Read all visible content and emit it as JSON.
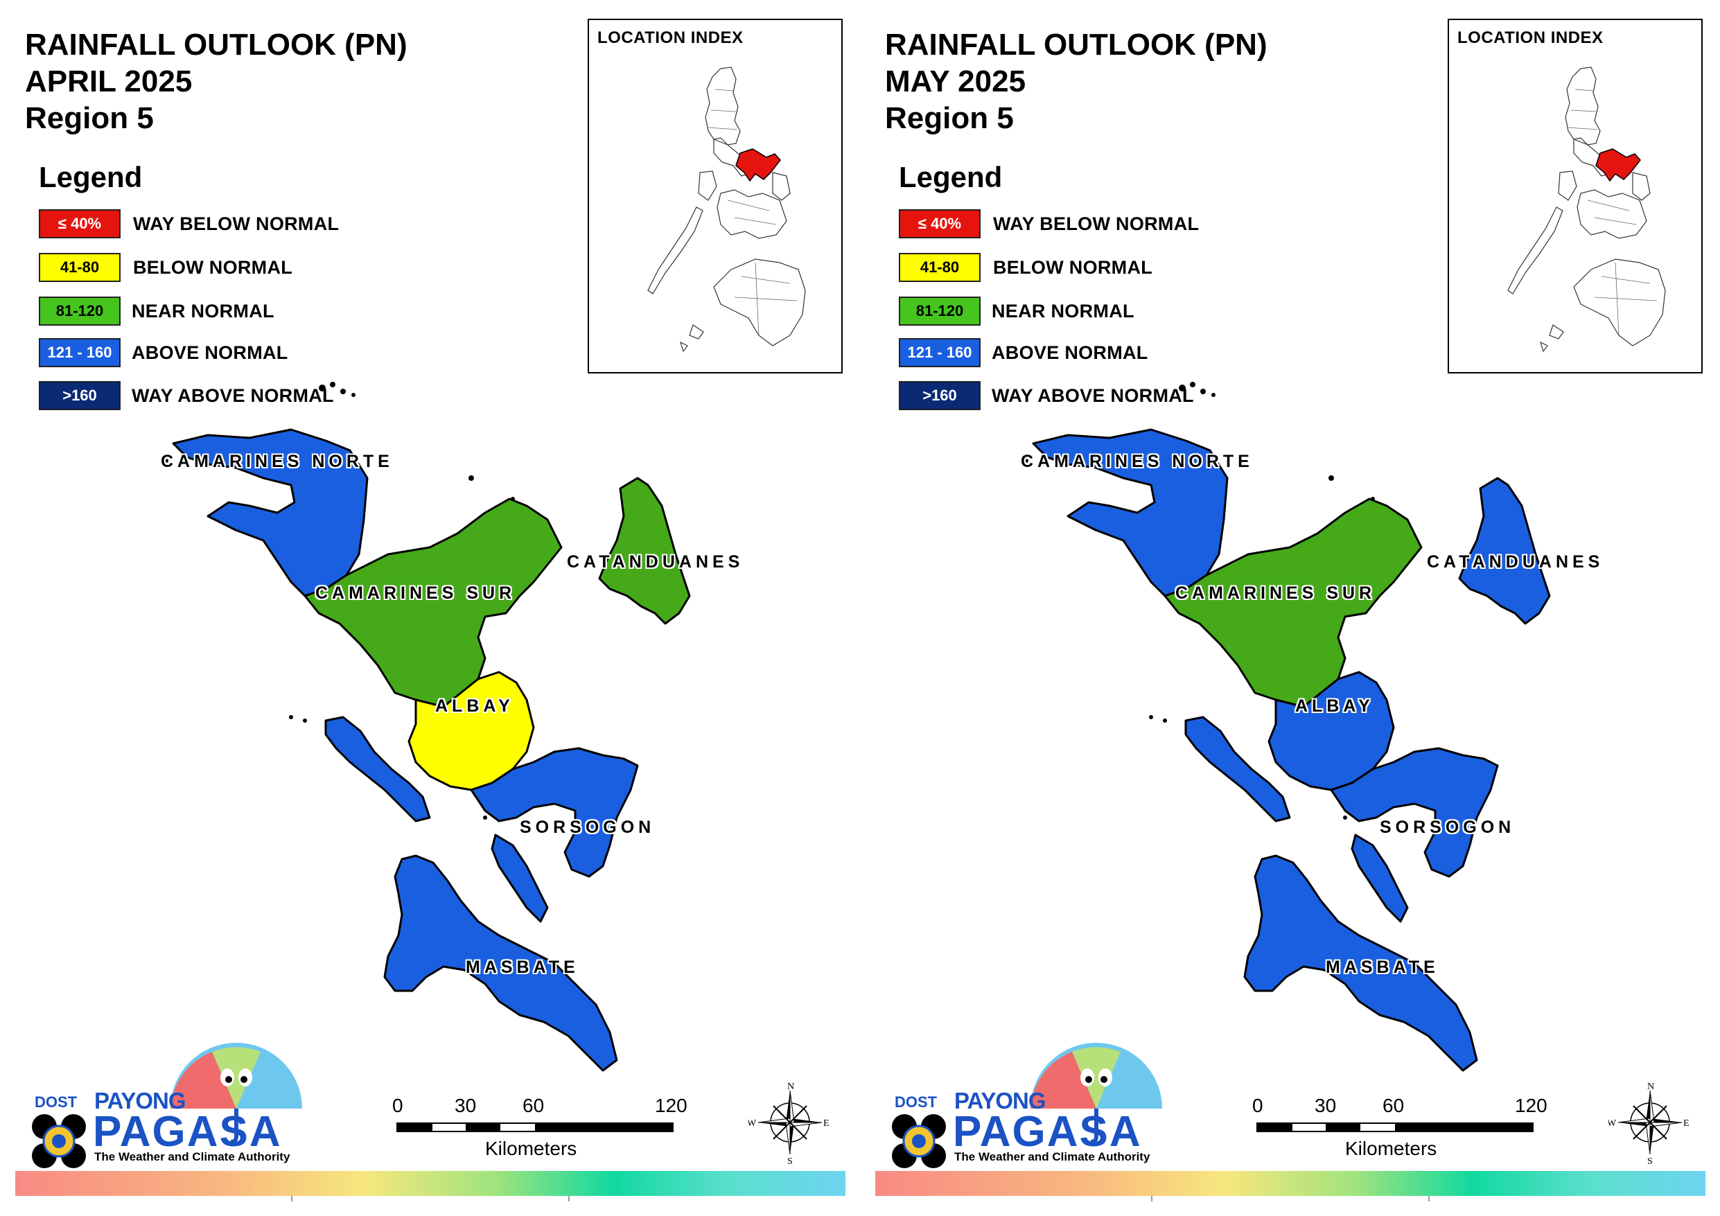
{
  "panels": [
    {
      "title_lines": [
        "RAINFALL OUTLOOK (PN)",
        "APRIL 2025",
        "Region 5"
      ],
      "location_index_title": "LOCATION INDEX",
      "legend_title": "Legend",
      "legend": [
        {
          "range": "≤ 40%",
          "label": "WAY BELOW NORMAL",
          "color": "#e5140f",
          "text_color": "#ffffff"
        },
        {
          "range": "41-80",
          "label": "BELOW NORMAL",
          "color": "#ffff00",
          "text_color": "#000000"
        },
        {
          "range": "81-120",
          "label": "NEAR NORMAL",
          "color": "#46c51e",
          "text_color": "#000000"
        },
        {
          "range": "121 - 160",
          "label": "ABOVE NORMAL",
          "color": "#1a5fe0",
          "text_color": "#ffffff"
        },
        {
          "range": ">160",
          "label": "WAY ABOVE NORMAL",
          "color": "#0b2a74",
          "text_color": "#ffffff"
        }
      ],
      "provinces": {
        "camarines_norte": {
          "label": "CAMARINES NORTE",
          "category": "ABOVE NORMAL",
          "color": "#1a5fe0"
        },
        "camarines_sur": {
          "label": "CAMARINES SUR",
          "category": "NEAR NORMAL",
          "color": "#46a91a"
        },
        "catanduanes": {
          "label": "CATANDUANES",
          "category": "NEAR NORMAL",
          "color": "#46a91a"
        },
        "albay": {
          "label": "ALBAY",
          "category": "BELOW NORMAL",
          "color": "#ffff00"
        },
        "sorsogon": {
          "label": "SORSOGON",
          "category": "ABOVE NORMAL",
          "color": "#1a5fe0"
        },
        "masbate": {
          "label": "MASBATE",
          "category": "ABOVE NORMAL",
          "color": "#1a5fe0"
        }
      },
      "scale": {
        "ticks": [
          "0",
          "30",
          "60",
          "120"
        ],
        "unit": "Kilometers"
      },
      "compass": {
        "n": "N",
        "s": "S",
        "e": "E",
        "w": "W"
      },
      "logo": {
        "dost": "DOST",
        "payong": "PAYONG",
        "pagasa": "PAGASA",
        "tagline": "The Weather and Climate Authority"
      }
    },
    {
      "title_lines": [
        "RAINFALL OUTLOOK (PN)",
        "MAY 2025",
        "Region 5"
      ],
      "location_index_title": "LOCATION INDEX",
      "legend_title": "Legend",
      "legend": [
        {
          "range": "≤ 40%",
          "label": "WAY BELOW NORMAL",
          "color": "#e5140f",
          "text_color": "#ffffff"
        },
        {
          "range": "41-80",
          "label": "BELOW NORMAL",
          "color": "#ffff00",
          "text_color": "#000000"
        },
        {
          "range": "81-120",
          "label": "NEAR NORMAL",
          "color": "#46c51e",
          "text_color": "#000000"
        },
        {
          "range": "121 - 160",
          "label": "ABOVE NORMAL",
          "color": "#1a5fe0",
          "text_color": "#ffffff"
        },
        {
          "range": ">160",
          "label": "WAY ABOVE NORMAL",
          "color": "#0b2a74",
          "text_color": "#ffffff"
        }
      ],
      "provinces": {
        "camarines_norte": {
          "label": "CAMARINES NORTE",
          "category": "ABOVE NORMAL",
          "color": "#1a5fe0"
        },
        "camarines_sur": {
          "label": "CAMARINES SUR",
          "category": "NEAR NORMAL",
          "color": "#46a91a"
        },
        "catanduanes": {
          "label": "CATANDUANES",
          "category": "ABOVE NORMAL",
          "color": "#1a5fe0"
        },
        "albay": {
          "label": "ALBAY",
          "category": "ABOVE NORMAL",
          "color": "#1a5fe0"
        },
        "sorsogon": {
          "label": "SORSOGON",
          "category": "ABOVE NORMAL",
          "color": "#1a5fe0"
        },
        "masbate": {
          "label": "MASBATE",
          "category": "ABOVE NORMAL",
          "color": "#1a5fe0"
        }
      },
      "scale": {
        "ticks": [
          "0",
          "30",
          "60",
          "120"
        ],
        "unit": "Kilometers"
      },
      "compass": {
        "n": "N",
        "s": "S",
        "e": "E",
        "w": "W"
      },
      "logo": {
        "dost": "DOST",
        "payong": "PAYONG",
        "pagasa": "PAGASA",
        "tagline": "The Weather and Climate Authority"
      }
    }
  ]
}
